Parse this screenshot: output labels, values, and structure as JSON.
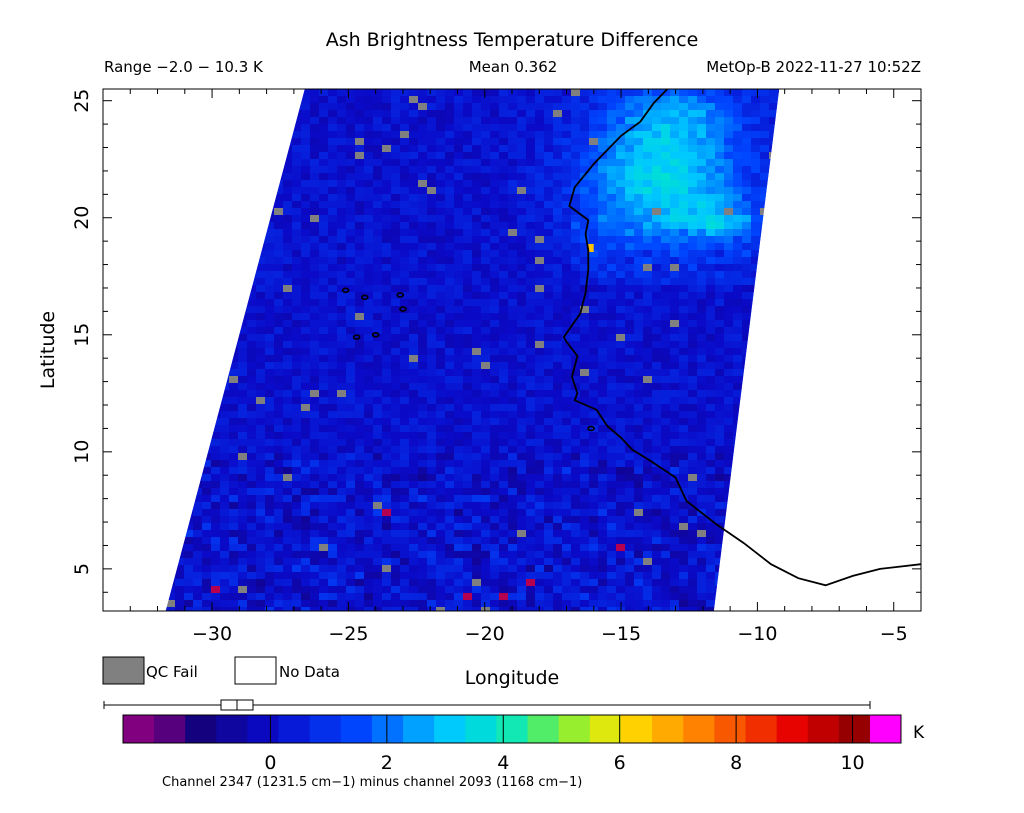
{
  "header": {
    "title": "Ash Brightness Temperature Difference",
    "range": "Range −2.0 − 10.3 K",
    "mean": "Mean 0.362",
    "source": "MetOp-B 2022-11-27 10:52Z"
  },
  "legend": {
    "qc_fail_label": "QC Fail",
    "no_data_label": "No Data",
    "qc_fail_color": "#808080",
    "no_data_color": "#ffffff"
  },
  "colorbar": {
    "unit": "K",
    "caption": "Channel 2347 (1231.5 cm−1) minus channel 2093 (1168 cm−1)",
    "range": [
      -2.0,
      10.3
    ],
    "under_color": "#800080",
    "over_color": "#ff00ff",
    "ticks": [
      0,
      2,
      4,
      6,
      8,
      10
    ],
    "tick_labels": [
      "0",
      "2",
      "4",
      "6",
      "8",
      "10"
    ]
  },
  "chart_data": {
    "type": "heatmap",
    "title": "Ash Brightness Temperature Difference",
    "xlabel": "Longitude",
    "ylabel": "Latitude",
    "xlim": [
      -34,
      -4
    ],
    "ylim": [
      3.2,
      25.5
    ],
    "xticks": [
      -30,
      -25,
      -20,
      -15,
      -10,
      -5
    ],
    "xtick_labels": [
      "−30",
      "−25",
      "−20",
      "−15",
      "−10",
      "−5"
    ],
    "yticks": [
      5,
      10,
      15,
      20,
      25
    ],
    "ytick_labels": [
      "5",
      "10",
      "15",
      "20",
      "25"
    ],
    "swath_edges": {
      "west": [
        [
          -26.6,
          25.5
        ],
        [
          -31.7,
          3.2
        ]
      ],
      "east": [
        [
          -9.2,
          25.5
        ],
        [
          -11.6,
          3.2
        ]
      ]
    },
    "value_range": [
      -2.0,
      10.3
    ],
    "mean": 0.362,
    "regions": [
      {
        "region": "ocean background",
        "value": 0.4
      },
      {
        "region": "NW Africa near 20N -14E",
        "value": 3.8
      },
      {
        "region": "hotspot near 18.5N -16E",
        "value": 6.5
      }
    ],
    "coastline": [
      [
        -13.3,
        25.5
      ],
      [
        -13.8,
        24.9
      ],
      [
        -14.3,
        24.1
      ],
      [
        -15.0,
        23.5
      ],
      [
        -16.0,
        22.3
      ],
      [
        -16.7,
        21.3
      ],
      [
        -16.9,
        20.5
      ],
      [
        -16.2,
        19.9
      ],
      [
        -16.3,
        19.3
      ],
      [
        -16.2,
        18.6
      ],
      [
        -16.2,
        17.8
      ],
      [
        -16.3,
        16.8
      ],
      [
        -16.5,
        15.9
      ],
      [
        -17.1,
        14.9
      ],
      [
        -17.0,
        14.7
      ],
      [
        -16.6,
        14.1
      ],
      [
        -16.8,
        13.2
      ],
      [
        -16.6,
        12.5
      ],
      [
        -16.7,
        12.2
      ],
      [
        -15.9,
        11.8
      ],
      [
        -15.5,
        11.1
      ],
      [
        -15.0,
        10.6
      ],
      [
        -14.6,
        10.1
      ],
      [
        -13.9,
        9.6
      ],
      [
        -13.0,
        8.9
      ],
      [
        -12.6,
        7.9
      ],
      [
        -11.5,
        6.9
      ],
      [
        -10.5,
        6.1
      ],
      [
        -9.5,
        5.2
      ],
      [
        -8.5,
        4.6
      ],
      [
        -7.5,
        4.3
      ],
      [
        -6.5,
        4.7
      ],
      [
        -5.5,
        5.0
      ],
      [
        -4.0,
        5.2
      ]
    ],
    "islands": [
      [
        -25.1,
        16.9
      ],
      [
        -24.4,
        16.6
      ],
      [
        -23.1,
        16.7
      ],
      [
        -23.0,
        16.1
      ],
      [
        -24.0,
        15.0
      ],
      [
        -24.7,
        14.9
      ],
      [
        -16.1,
        11.0
      ]
    ]
  }
}
